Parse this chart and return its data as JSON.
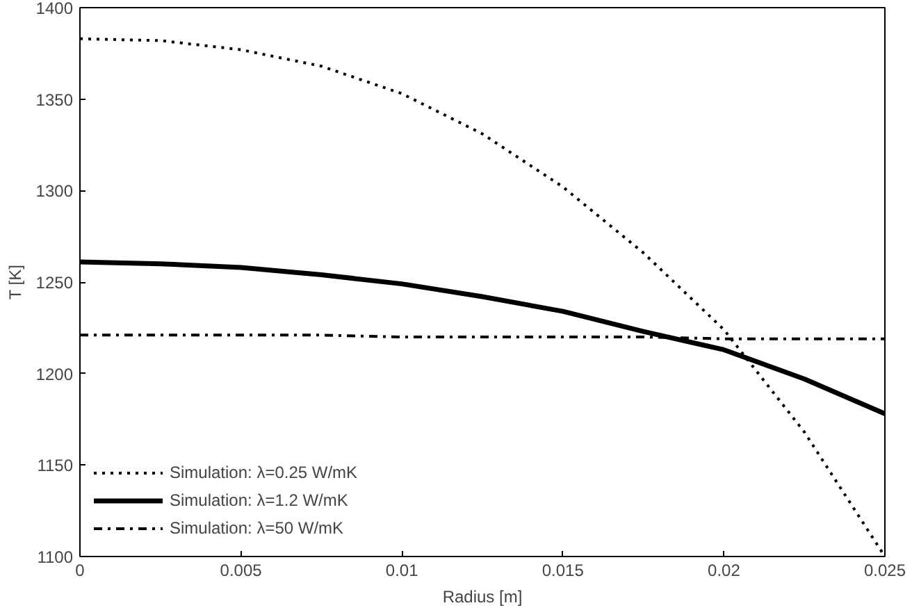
{
  "chart_data": {
    "type": "line",
    "xlabel": "Radius [m]",
    "ylabel": "T [K]",
    "x": [
      0,
      0.0025,
      0.005,
      0.0075,
      0.01,
      0.0125,
      0.015,
      0.0175,
      0.02,
      0.0225,
      0.025
    ],
    "series": [
      {
        "name": "Simulation: λ=0.25 W/mK",
        "color": "#000000",
        "line_style": "dotted",
        "values": [
          1383,
          1382,
          1377,
          1368,
          1353,
          1331,
          1302,
          1266,
          1224,
          1168,
          1100
        ]
      },
      {
        "name": "Simulation: λ=1.2 W/mK",
        "color": "#000000",
        "line_style": "solid",
        "values": [
          1261,
          1260,
          1258,
          1254,
          1249,
          1242,
          1234,
          1223,
          1213,
          1197,
          1178
        ]
      },
      {
        "name": "Simulation: λ=50 W/mK",
        "color": "#000000",
        "line_style": "dashdot",
        "values": [
          1221,
          1221,
          1221,
          1221,
          1220,
          1220,
          1220,
          1220,
          1219,
          1219,
          1219
        ]
      }
    ],
    "xlim": [
      0,
      0.025
    ],
    "ylim": [
      1100,
      1400
    ],
    "xticks": [
      0,
      0.005,
      0.01,
      0.015,
      0.02,
      0.025
    ],
    "yticks": [
      1100,
      1150,
      1200,
      1250,
      1300,
      1350,
      1400
    ],
    "legend": "bottom left",
    "grid": false,
    "marker": "none"
  }
}
